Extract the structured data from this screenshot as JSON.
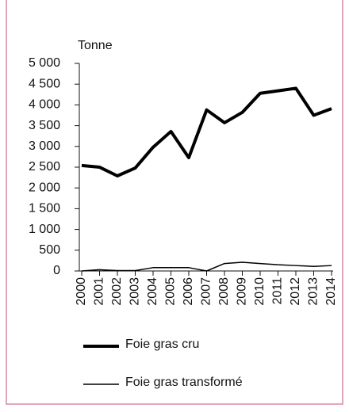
{
  "chart_data": {
    "type": "line",
    "y_label": "Tonne",
    "x": [
      "2000",
      "2001",
      "2002",
      "2003",
      "2004",
      "2005",
      "2006",
      "2007",
      "2008",
      "2009",
      "2010",
      "2011",
      "2012",
      "2013",
      "2014"
    ],
    "series": [
      {
        "name": "Foie gras cru",
        "color": "#000000",
        "values": [
          2540,
          2500,
          2290,
          2480,
          2980,
          3360,
          2730,
          3880,
          3570,
          3820,
          4280,
          4340,
          4400,
          3750,
          3910
        ]
      },
      {
        "name": "Foie gras transformé",
        "color": "#000000",
        "values": [
          0,
          30,
          10,
          10,
          80,
          80,
          80,
          0,
          180,
          210,
          180,
          150,
          130,
          110,
          130
        ]
      }
    ],
    "ylim": [
      0,
      5000
    ],
    "yticks": [
      0,
      500,
      {
        "value": 1000,
        "label": "1 000"
      },
      {
        "value": 1500,
        "label": "1 500"
      },
      {
        "value": 2000,
        "label": "2 000"
      },
      {
        "value": 2500,
        "label": "2 500"
      },
      {
        "value": 3000,
        "label": "3 000"
      },
      {
        "value": 3500,
        "label": "3 500"
      },
      {
        "value": 4000,
        "label": "4 000"
      },
      {
        "value": 4500,
        "label": "4 500"
      },
      {
        "value": 5000,
        "label": "5 000"
      }
    ]
  }
}
